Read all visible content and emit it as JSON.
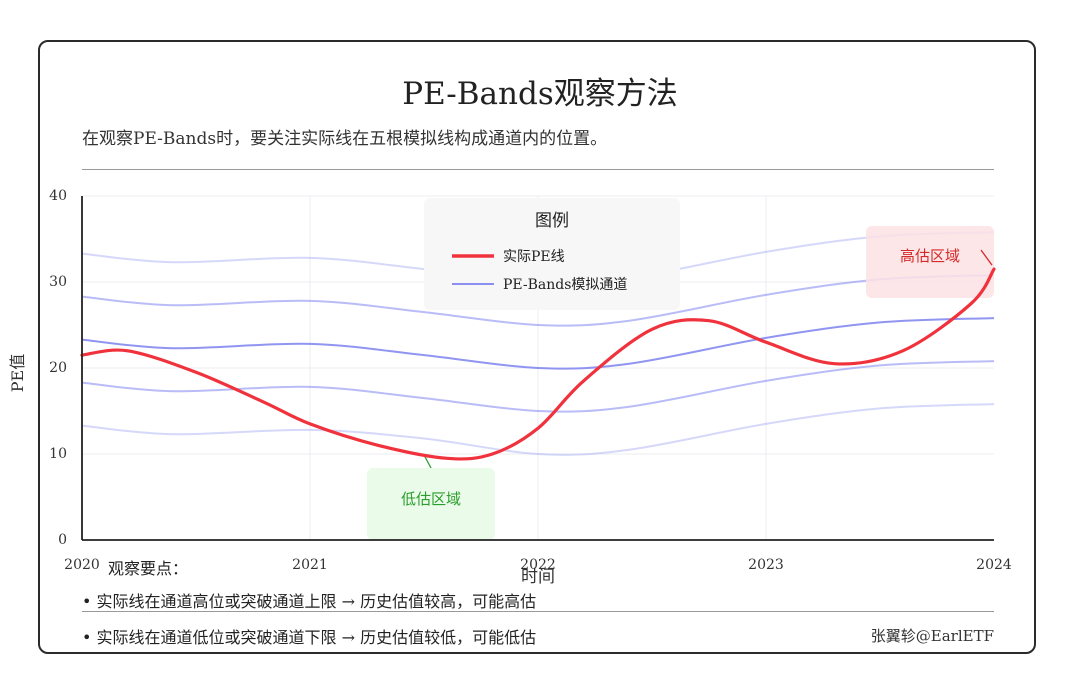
{
  "title": "PE-Bands观察方法",
  "subtitle": "在观察PE-Bands时，要关注实际线在五根模拟线构成通道内的位置。",
  "notes": {
    "heading": "观察要点：",
    "items": [
      "•  实际线在通道高位或突破通道上限  →  历史估值较高，可能高估",
      "•  实际线在通道低位或突破通道下限  →  历史估值较低，可能低估"
    ]
  },
  "credit": "张翼轸@EarlETF",
  "colors": {
    "actual": "#f0323c",
    "band": "#8a8ff0",
    "high_zone": "#fde2e4",
    "low_zone": "#eafbea",
    "high_text": "#d42a2a",
    "low_text": "#2a9d2a"
  },
  "chart_data": {
    "type": "line",
    "xlabel": "时间",
    "ylabel": "PE值",
    "xlim": [
      2020,
      2024
    ],
    "ylim": [
      0,
      40
    ],
    "x_ticks": [
      "2020",
      "2021",
      "2022",
      "2023",
      "2024"
    ],
    "y_ticks": [
      "0",
      "10",
      "20",
      "30",
      "40"
    ],
    "grid": true,
    "legend": {
      "title": "图例",
      "placement": "top-center",
      "entries": [
        "实际PE线",
        "PE-Bands模拟通道"
      ]
    },
    "series": [
      {
        "name": "实际PE线",
        "color": "#f0323c",
        "x": [
          2020,
          2020.2,
          2020.5,
          2020.8,
          2021,
          2021.3,
          2021.6,
          2021.8,
          2022,
          2022.2,
          2022.5,
          2022.75,
          2023,
          2023.3,
          2023.6,
          2023.9,
          2024
        ],
        "y": [
          21.5,
          22,
          19.5,
          16,
          13.5,
          11,
          9.5,
          10,
          13,
          18.5,
          24.5,
          25.5,
          23,
          20.5,
          22,
          27.5,
          31.5
        ]
      },
      {
        "name": "PE-Bands模拟通道",
        "lines": [
          {
            "x": [
              2020,
              2020.4,
              2021,
              2021.5,
              2022,
              2022.4,
              2023,
              2023.5,
              2024
            ],
            "y": [
              13.3,
              12.3,
              12.8,
              11.8,
              10,
              10.5,
              13.5,
              15.3,
              15.8
            ]
          },
          {
            "x": [
              2020,
              2020.4,
              2021,
              2021.5,
              2022,
              2022.4,
              2023,
              2023.5,
              2024
            ],
            "y": [
              18.3,
              17.3,
              17.8,
              16.5,
              15,
              15.5,
              18.5,
              20.3,
              20.8
            ]
          },
          {
            "x": [
              2020,
              2020.4,
              2021,
              2021.5,
              2022,
              2022.4,
              2023,
              2023.5,
              2024
            ],
            "y": [
              23.3,
              22.3,
              22.8,
              21.5,
              20,
              20.5,
              23.5,
              25.3,
              25.8
            ]
          },
          {
            "x": [
              2020,
              2020.4,
              2021,
              2021.5,
              2022,
              2022.4,
              2023,
              2023.5,
              2024
            ],
            "y": [
              28.3,
              27.3,
              27.8,
              26.5,
              25,
              25.5,
              28.5,
              30.3,
              30.8
            ]
          },
          {
            "x": [
              2020,
              2020.4,
              2021,
              2021.5,
              2022,
              2022.4,
              2023,
              2023.5,
              2024
            ],
            "y": [
              33.3,
              32.3,
              32.8,
              31.5,
              30,
              30.5,
              33.5,
              35.3,
              35.8
            ]
          }
        ]
      }
    ],
    "annotations": [
      {
        "text": "高估区域",
        "x": 2023.75,
        "y": 32.5,
        "target_x": 2024,
        "target_y": 31.5
      },
      {
        "text": "低估区域",
        "x": 2021.5,
        "y": 4.5,
        "target_x": 2021.5,
        "target_y": 10
      }
    ]
  }
}
